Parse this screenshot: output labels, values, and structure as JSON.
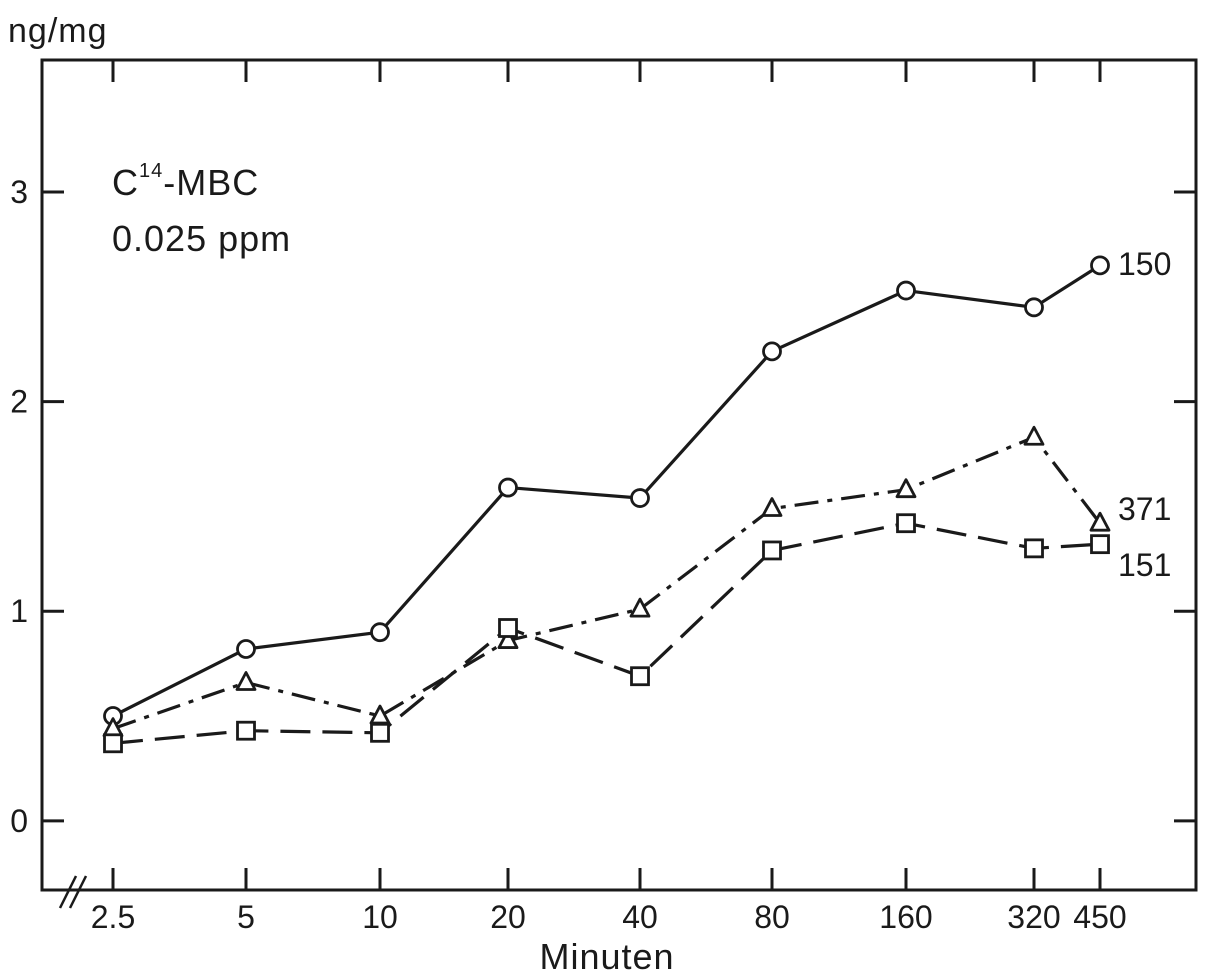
{
  "chart_data": {
    "type": "line",
    "ylabel": "ng/mg",
    "xlabel": "Minuten",
    "annotation_line1_base": "C",
    "annotation_line1_sup": "14",
    "annotation_line1_rest": "-MBC",
    "annotation_line2": "0.025 ppm",
    "categories": [
      "2.5",
      "5",
      "10",
      "20",
      "40",
      "80",
      "160",
      "320",
      "450"
    ],
    "yticks": [
      "0",
      "1",
      "2",
      "3"
    ],
    "ylim": [
      -0.33,
      3.63
    ],
    "grid": false,
    "series": [
      {
        "name": "150",
        "marker": "circle",
        "dash": "solid",
        "values": [
          0.5,
          0.82,
          0.9,
          1.59,
          1.54,
          2.24,
          2.53,
          2.45,
          2.65
        ]
      },
      {
        "name": "371",
        "marker": "triangle",
        "dash": "dashdot",
        "values": [
          0.44,
          0.66,
          0.5,
          0.86,
          1.01,
          1.49,
          1.58,
          1.83,
          1.42
        ]
      },
      {
        "name": "151",
        "marker": "square",
        "dash": "dashed",
        "values": [
          0.37,
          0.43,
          0.42,
          0.92,
          0.69,
          1.29,
          1.42,
          1.3,
          1.32
        ]
      }
    ]
  }
}
